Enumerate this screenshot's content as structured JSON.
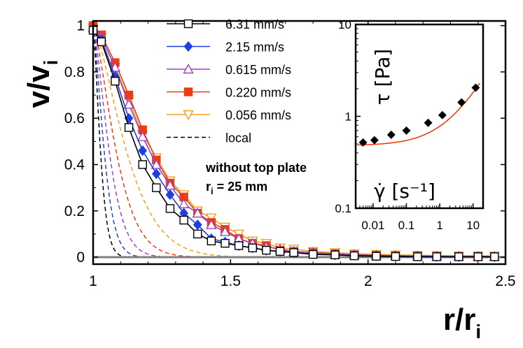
{
  "chart_data": {
    "type": "line",
    "main": {
      "xlabel": "r/r",
      "xlabel_sub": "i",
      "ylabel": "v/v",
      "ylabel_sub": "i",
      "xlim": [
        1,
        2.5
      ],
      "ylim": [
        -0.03,
        1.02
      ],
      "xticks": [
        1,
        1.5,
        2,
        2.5
      ],
      "xtick_labels": [
        "1",
        "1.5",
        "2",
        "2.5"
      ],
      "yticks": [
        0,
        0.2,
        0.4,
        0.6,
        0.8,
        1
      ],
      "ytick_labels": [
        "0",
        "0.2",
        "0.4",
        "0.6",
        "0.8",
        "1"
      ],
      "series": [
        {
          "name": "6.31 mm/s",
          "color": "#000000",
          "marker": "square-open",
          "x": [
            1.0,
            1.03,
            1.08,
            1.13,
            1.18,
            1.23,
            1.28,
            1.33,
            1.38,
            1.43,
            1.48,
            1.53,
            1.58,
            1.63,
            1.68,
            1.73,
            1.8,
            1.88,
            1.95,
            2.03,
            2.1,
            2.18,
            2.25,
            2.33,
            2.4,
            2.46
          ],
          "y": [
            0.98,
            0.93,
            0.76,
            0.56,
            0.4,
            0.3,
            0.21,
            0.16,
            0.1,
            0.07,
            0.06,
            0.05,
            0.04,
            0.03,
            0.025,
            0.02,
            0.012,
            0.01,
            0.006,
            0.004,
            0.003,
            0.002,
            0.002,
            0.002,
            0.002,
            0.002
          ]
        },
        {
          "name": "2.15 mm/s",
          "color": "#1f3fe0",
          "marker": "diamond-filled",
          "x": [
            1.0,
            1.03,
            1.08,
            1.13,
            1.18,
            1.23,
            1.28,
            1.33,
            1.38,
            1.43,
            1.48,
            1.53,
            1.58,
            1.63,
            1.68,
            1.73,
            1.8,
            1.88,
            1.95,
            2.03,
            2.1,
            2.18,
            2.25,
            2.33,
            2.4,
            2.46
          ],
          "y": [
            0.98,
            0.94,
            0.78,
            0.6,
            0.46,
            0.36,
            0.27,
            0.19,
            0.14,
            0.08,
            0.065,
            0.05,
            0.04,
            0.03,
            0.025,
            0.02,
            0.014,
            0.01,
            0.008,
            0.006,
            0.005,
            0.004,
            0.003,
            0.002,
            0.002,
            0.002
          ]
        },
        {
          "name": "0.615 mm/s",
          "color": "#a040c0",
          "marker": "triangle-open",
          "x": [
            1.0,
            1.03,
            1.08,
            1.13,
            1.18,
            1.23,
            1.28,
            1.33,
            1.38,
            1.43,
            1.48,
            1.53,
            1.58,
            1.63,
            1.68,
            1.73,
            1.8,
            1.88,
            1.95,
            2.03,
            2.1,
            2.18,
            2.25,
            2.33,
            2.4,
            2.46
          ],
          "y": [
            0.99,
            0.95,
            0.82,
            0.66,
            0.52,
            0.4,
            0.31,
            0.23,
            0.19,
            0.14,
            0.11,
            0.08,
            0.06,
            0.045,
            0.035,
            0.025,
            0.02,
            0.012,
            0.01,
            0.008,
            0.006,
            0.005,
            0.004,
            0.003,
            0.003,
            0.003
          ]
        },
        {
          "name": "0.220 mm/s",
          "color": "#f03a10",
          "marker": "square-filled",
          "x": [
            1.0,
            1.03,
            1.08,
            1.13,
            1.18,
            1.23,
            1.28,
            1.33,
            1.38,
            1.43,
            1.48,
            1.53,
            1.58,
            1.63,
            1.68,
            1.73,
            1.8,
            1.88,
            1.95,
            2.03,
            2.1,
            2.18,
            2.25,
            2.33,
            2.4,
            2.46
          ],
          "y": [
            1.0,
            0.96,
            0.84,
            0.7,
            0.55,
            0.42,
            0.32,
            0.26,
            0.19,
            0.15,
            0.12,
            0.08,
            0.06,
            0.05,
            0.03,
            0.025,
            0.02,
            0.015,
            0.01,
            0.008,
            0.006,
            0.005,
            0.004,
            0.003,
            0.003,
            0.003
          ]
        },
        {
          "name": "0.056 mm/s",
          "color": "#f0a020",
          "marker": "triangle-down-open",
          "x": [
            1.0,
            1.03,
            1.08,
            1.13,
            1.18,
            1.23,
            1.28,
            1.33,
            1.38,
            1.43,
            1.48,
            1.53,
            1.58,
            1.63,
            1.68,
            1.73,
            1.8,
            1.88,
            1.95,
            2.03,
            2.1,
            2.18,
            2.25,
            2.33,
            2.4,
            2.46
          ],
          "y": [
            0.99,
            0.95,
            0.82,
            0.68,
            0.53,
            0.43,
            0.33,
            0.27,
            0.2,
            0.17,
            0.13,
            0.1,
            0.07,
            0.06,
            0.04,
            0.035,
            0.025,
            0.02,
            0.015,
            0.012,
            0.01,
            0.008,
            0.007,
            0.006,
            0.006,
            0.005
          ]
        }
      ],
      "local_curves": [
        {
          "color": "#000000",
          "decay": 0.032
        },
        {
          "color": "#1f3fe0",
          "decay": 0.048
        },
        {
          "color": "#a040c0",
          "decay": 0.07
        },
        {
          "color": "#f03a10",
          "decay": 0.1
        },
        {
          "color": "#f0a020",
          "decay": 0.145
        }
      ],
      "zero_line_color": "#808080"
    },
    "legend": {
      "entries": [
        "6.31 mm/s",
        "2.15 mm/s",
        "0.615 mm/s",
        "0.220 mm/s",
        "0.056 mm/s",
        "local"
      ],
      "placement": "top-center"
    },
    "annotations": {
      "line1": "without top plate",
      "line2_prefix": "r",
      "line2_sub": "i",
      "line2_suffix": " = 25 mm"
    },
    "inset": {
      "type": "scatter",
      "scale": "log-log",
      "xlabel": "γ̇ [s⁻¹]",
      "ylabel": "τ [Pa]",
      "xlim": [
        0.003,
        20
      ],
      "ylim": [
        0.1,
        10
      ],
      "xticks": [
        0.01,
        0.1,
        1,
        10
      ],
      "xtick_labels": [
        "0.01",
        "0.1",
        "1",
        "10"
      ],
      "yticks": [
        0.1,
        1,
        10
      ],
      "ytick_labels": [
        "0.1",
        "1",
        "10"
      ],
      "points": {
        "x": [
          0.005,
          0.011,
          0.035,
          0.1,
          0.45,
          1.2,
          4.5,
          12
        ],
        "y": [
          0.52,
          0.55,
          0.63,
          0.7,
          0.85,
          1.03,
          1.42,
          2.05
        ]
      },
      "fit_color": "#f03a10",
      "fit": {
        "tau_y": 0.48,
        "k": 0.3,
        "n": 0.65
      }
    }
  }
}
